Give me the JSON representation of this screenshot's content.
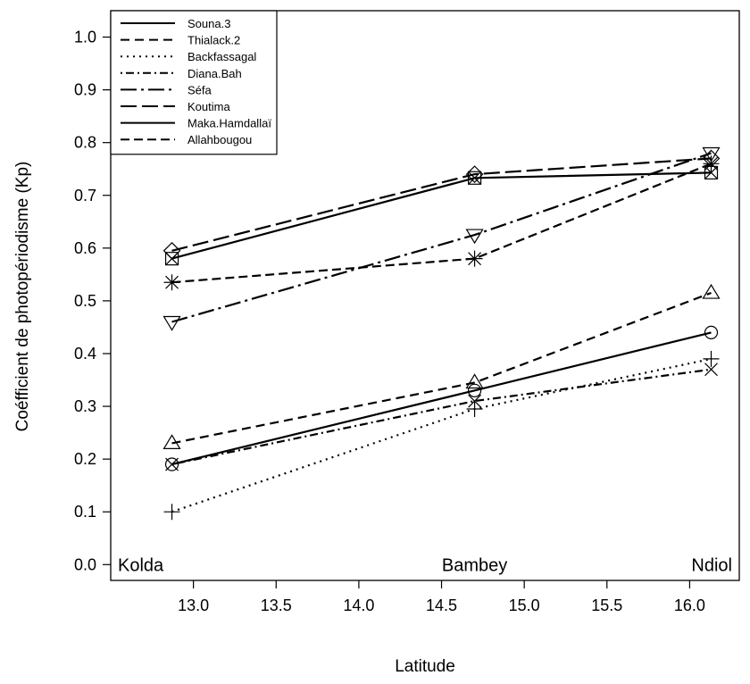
{
  "chart_data": {
    "type": "line",
    "xlabel": "Latitude",
    "ylabel": "Coéfficient de photopériodisme (Kp)",
    "xlim": [
      12.5,
      16.3
    ],
    "ylim": [
      -0.03,
      1.05
    ],
    "xticks": [
      "13.0",
      "13.5",
      "14.0",
      "14.5",
      "15.0",
      "15.5",
      "16.0"
    ],
    "yticks": [
      "0.0",
      "0.1",
      "0.2",
      "0.3",
      "0.4",
      "0.5",
      "0.6",
      "0.7",
      "0.8",
      "0.9",
      "1.0"
    ],
    "x": [
      12.87,
      14.7,
      16.13
    ],
    "legend_position": "top-left",
    "annotations": [
      {
        "text": "Kolda",
        "x": 12.87,
        "y": 0.0
      },
      {
        "text": "Bambey",
        "x": 14.7,
        "y": 0.0
      },
      {
        "text": "Ndiol",
        "x": 16.13,
        "y": 0.0
      }
    ],
    "series": [
      {
        "name": "Souna.3",
        "values": [
          0.19,
          0.33,
          0.44
        ],
        "dash": "",
        "marker": "circle"
      },
      {
        "name": "Thialack.2",
        "values": [
          0.23,
          0.345,
          0.515
        ],
        "dash": "10 6",
        "marker": "triangle-up"
      },
      {
        "name": "Backfassagal",
        "values": [
          0.1,
          0.295,
          0.39
        ],
        "dash": "2 5",
        "marker": "plus"
      },
      {
        "name": "Diana.Bah",
        "values": [
          0.19,
          0.31,
          0.37
        ],
        "dash": "2 4 9 4",
        "marker": "x"
      },
      {
        "name": "Séfa",
        "values": [
          0.46,
          0.625,
          0.78
        ],
        "dash": "18 5 3 5",
        "marker": "triangle-down"
      },
      {
        "name": "Koutima",
        "values": [
          0.595,
          0.74,
          0.77
        ],
        "dash": "18 6",
        "marker": "diamond"
      },
      {
        "name": "Maka.Hamdallaï",
        "values": [
          0.58,
          0.733,
          0.743
        ],
        "dash": "",
        "marker": "square-x"
      },
      {
        "name": "Allahbougou",
        "values": [
          0.535,
          0.58,
          0.76
        ],
        "dash": "10 5",
        "marker": "asterisk"
      }
    ]
  }
}
